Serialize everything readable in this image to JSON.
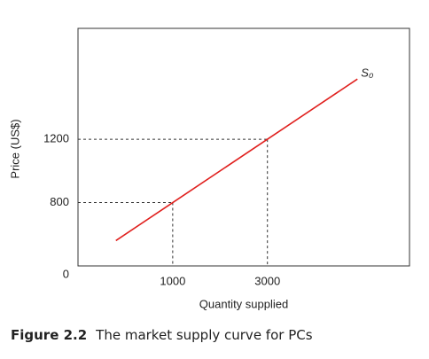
{
  "chart_data": {
    "type": "line",
    "figure_label": "Figure 2.2",
    "title": "The market supply curve for PCs",
    "x_label": "Quantity supplied",
    "y_label": "Price (US$)",
    "origin_label": "0",
    "x": [
      -200,
      1000,
      3000,
      4900
    ],
    "series": [
      {
        "name": "S₀",
        "color": "#e0201e",
        "values": [
          560,
          800,
          1200,
          1580
        ]
      }
    ],
    "xlim": [
      -1000,
      6000
    ],
    "xticks": [
      1000,
      3000
    ],
    "ylim": [
      400,
      1900
    ],
    "yticks": [
      800,
      1200
    ],
    "grid": false
  }
}
